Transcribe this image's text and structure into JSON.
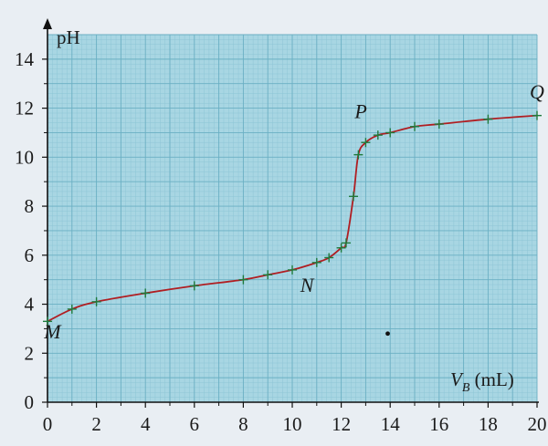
{
  "chart_data": {
    "type": "line",
    "title": "",
    "ylabel": "pH",
    "xlabel": {
      "main": "V",
      "sub": "B",
      "unit": " (mL)"
    },
    "xlim": [
      0,
      20
    ],
    "ylim": [
      0,
      15
    ],
    "x_ticks": [
      0,
      2,
      4,
      6,
      8,
      10,
      12,
      14,
      16,
      18,
      20
    ],
    "y_ticks": [
      0,
      2,
      4,
      6,
      8,
      10,
      12,
      14
    ],
    "grid": true,
    "colors": {
      "grid_bg": "#a8d6e3",
      "grid_minor": "#8cc4d5",
      "grid_major": "#6aafc3",
      "curve": "#b01e22",
      "markers": "#1e7a3c"
    },
    "series": [
      {
        "values": [
          {
            "x": 0,
            "y": 3.3
          },
          {
            "x": 1,
            "y": 3.8
          },
          {
            "x": 2,
            "y": 4.1
          },
          {
            "x": 4,
            "y": 4.45
          },
          {
            "x": 6,
            "y": 4.75
          },
          {
            "x": 8,
            "y": 5.0
          },
          {
            "x": 9,
            "y": 5.2
          },
          {
            "x": 10,
            "y": 5.4
          },
          {
            "x": 11,
            "y": 5.7
          },
          {
            "x": 11.5,
            "y": 5.9
          },
          {
            "x": 12,
            "y": 6.3
          },
          {
            "x": 12.2,
            "y": 6.5
          },
          {
            "x": 12.5,
            "y": 8.4
          },
          {
            "x": 12.7,
            "y": 10.1
          },
          {
            "x": 13,
            "y": 10.6
          },
          {
            "x": 13.5,
            "y": 10.9
          },
          {
            "x": 14,
            "y": 11.0
          },
          {
            "x": 15,
            "y": 11.25
          },
          {
            "x": 16,
            "y": 11.35
          },
          {
            "x": 18,
            "y": 11.55
          },
          {
            "x": 20,
            "y": 11.7
          }
        ]
      }
    ],
    "annotations": [
      {
        "text": "M",
        "x": 0.2,
        "y": 2.6
      },
      {
        "text": "N",
        "x": 10.6,
        "y": 4.5
      },
      {
        "text": "P",
        "x": 12.8,
        "y": 11.6
      },
      {
        "text": "Q",
        "x": 20.0,
        "y": 12.4
      }
    ],
    "extra_marks": [
      {
        "x": 13.9,
        "y": 2.8
      }
    ]
  }
}
